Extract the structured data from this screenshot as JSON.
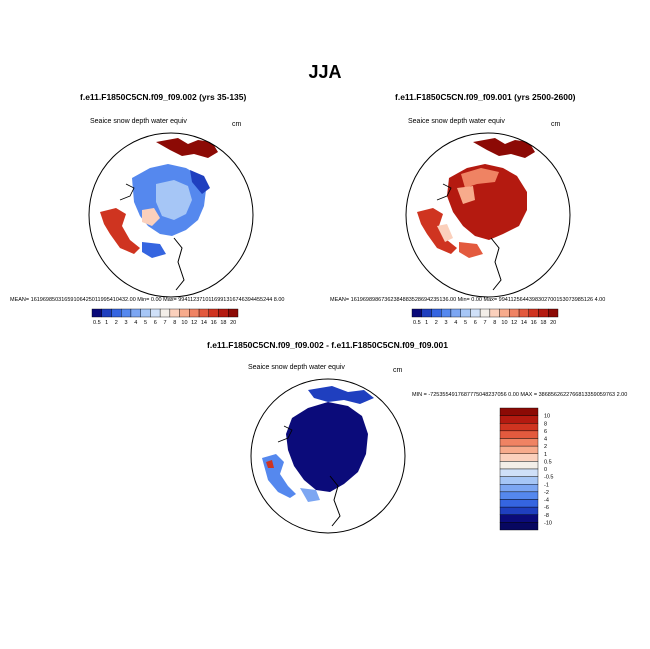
{
  "figure": {
    "title": "JJA"
  },
  "panels": {
    "left": {
      "title": "f.e11.F1850C5CN.f09_f09.002 (yrs 35-135)",
      "variable": "Seaice snow depth water equiv",
      "units": "cm",
      "stats": "MEAN= 16196985031659106425011995410432.00   Min=   0.00  Max= 9941123710116991316746394455244 8.00"
    },
    "right": {
      "title": "f.e11.F1850C5CN.f09_f09.001 (yrs 2500-2600)",
      "variable": "Seaice snow depth water equiv",
      "units": "cm",
      "stats": "MEAN= 16196989867362384883528694235136.00   Min=   0.00  Max= 9941125644398302700153073985126 4.00"
    },
    "diff": {
      "title": "f.e11.F1850C5CN.f09_f09.002 - f.e11.F1850C5CN.f09_f09.001",
      "variable": "Seaice snow depth water equiv",
      "units": "cm",
      "stats": "MIN = -7253554917687775048237056 0.00 MAX = 3868562622766813359059763 2.00"
    }
  },
  "chart_data": [
    {
      "type": "heatmap",
      "title": "f.e11.F1850C5CN.f09_f09.002 (yrs 35-135)",
      "projection": "polar stereographic (Arctic)",
      "colorbar": {
        "orientation": "horizontal",
        "labels": [
          "0.5",
          "1",
          "2",
          "3",
          "4",
          "5",
          "6",
          "7",
          "8",
          "10",
          "12",
          "14",
          "16",
          "18",
          "20"
        ],
        "colors": [
          "#0b0b7a",
          "#1f3fbf",
          "#3565e0",
          "#5588ee",
          "#7ca6f2",
          "#a6c6f6",
          "#cfe0f8",
          "#f3eee8",
          "#fbd0bc",
          "#f7ab8c",
          "#ef8363",
          "#e35a3e",
          "#cf3420",
          "#b41a10",
          "#8c0a05"
        ]
      }
    },
    {
      "type": "heatmap",
      "title": "f.e11.F1850C5CN.f09_f09.001 (yrs 2500-2600)",
      "projection": "polar stereographic (Arctic)",
      "colorbar": {
        "orientation": "horizontal",
        "labels": [
          "0.5",
          "1",
          "2",
          "3",
          "4",
          "5",
          "6",
          "7",
          "8",
          "10",
          "12",
          "14",
          "16",
          "18",
          "20"
        ],
        "colors": [
          "#0b0b7a",
          "#1f3fbf",
          "#3565e0",
          "#5588ee",
          "#7ca6f2",
          "#a6c6f6",
          "#cfe0f8",
          "#f3eee8",
          "#fbd0bc",
          "#f7ab8c",
          "#ef8363",
          "#e35a3e",
          "#cf3420",
          "#b41a10",
          "#8c0a05"
        ]
      }
    },
    {
      "type": "heatmap",
      "title": "f.e11.F1850C5CN.f09_f09.002 - f.e11.F1850C5CN.f09_f09.001",
      "projection": "polar stereographic (Arctic)",
      "colorbar": {
        "orientation": "vertical",
        "labels": [
          "10",
          "8",
          "6",
          "4",
          "2",
          "1",
          "0.5",
          "0",
          "-0.5",
          "-1",
          "-2",
          "-4",
          "-6",
          "-8",
          "-10"
        ],
        "colors": [
          "#8c0a05",
          "#b41a10",
          "#cf3420",
          "#e35a3e",
          "#ef8363",
          "#f7ab8c",
          "#fbd0bc",
          "#f3eee8",
          "#cfe0f8",
          "#a6c6f6",
          "#7ca6f2",
          "#5588ee",
          "#3565e0",
          "#1f3fbf",
          "#0b0b7a",
          "#070760"
        ]
      }
    }
  ]
}
